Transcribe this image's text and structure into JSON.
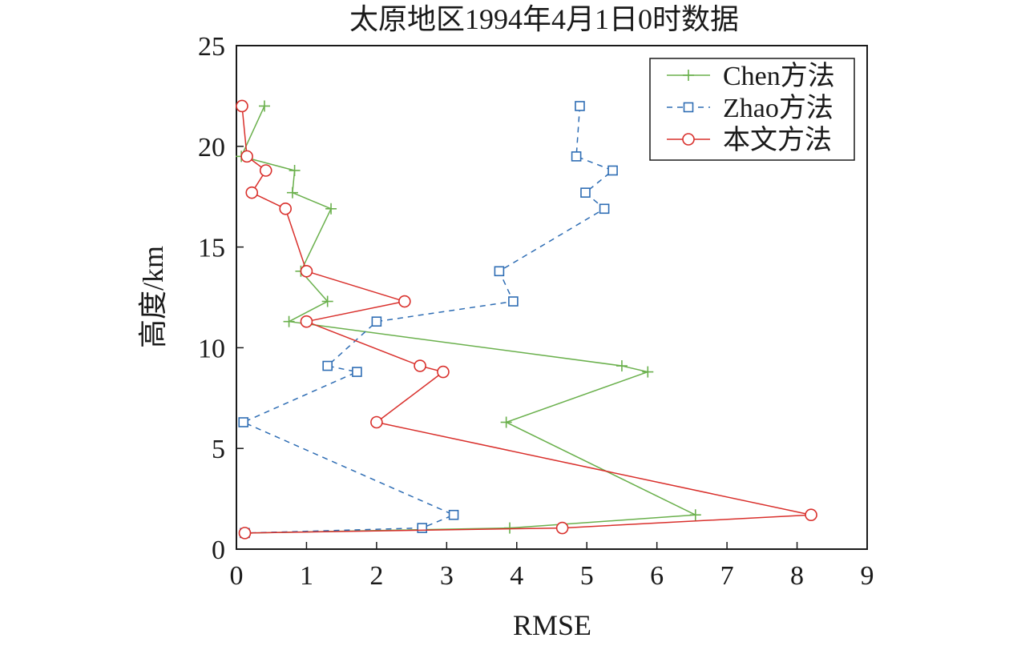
{
  "chart_data": {
    "type": "line",
    "title": "太原地区1994年4月1日0时数据",
    "xlabel": "RMSE",
    "ylabel": "高度/km",
    "xlim": [
      0,
      9
    ],
    "ylim": [
      0,
      25
    ],
    "xticks": [
      0,
      1,
      2,
      3,
      4,
      5,
      6,
      7,
      8,
      9
    ],
    "yticks": [
      0,
      5,
      10,
      15,
      20,
      25
    ],
    "grid": false,
    "legend_position": "top-right",
    "series": [
      {
        "name": "Chen方法",
        "color": "#6ab04c",
        "marker": "plus",
        "line_style": "solid",
        "x": [
          0.4,
          0.07,
          0.83,
          0.8,
          1.35,
          0.92,
          1.3,
          0.75,
          5.5,
          5.87,
          3.85,
          6.55,
          3.9,
          0.15
        ],
        "y": [
          22.0,
          19.5,
          18.8,
          17.7,
          16.9,
          13.8,
          12.3,
          11.3,
          9.1,
          8.8,
          6.3,
          1.7,
          1.05,
          0.8
        ]
      },
      {
        "name": "Zhao方法",
        "color": "#2e6db4",
        "marker": "square",
        "line_style": "dashed",
        "x": [
          4.9,
          4.85,
          5.37,
          4.98,
          5.25,
          3.75,
          3.95,
          2.0,
          1.3,
          1.72,
          0.1,
          3.1,
          2.65,
          0.12
        ],
        "y": [
          22.0,
          19.5,
          18.8,
          17.7,
          16.9,
          13.8,
          12.3,
          11.3,
          9.1,
          8.8,
          6.3,
          1.7,
          1.05,
          0.8
        ]
      },
      {
        "name": "本文方法",
        "color": "#d9302c",
        "marker": "circle",
        "line_style": "solid",
        "x": [
          0.08,
          0.15,
          0.42,
          0.22,
          0.7,
          1.0,
          2.4,
          1.0,
          2.62,
          2.95,
          2.0,
          8.2,
          4.65,
          0.12
        ],
        "y": [
          22.0,
          19.5,
          18.8,
          17.7,
          16.9,
          13.8,
          12.3,
          11.3,
          9.1,
          8.8,
          6.3,
          1.7,
          1.05,
          0.8
        ]
      }
    ]
  }
}
